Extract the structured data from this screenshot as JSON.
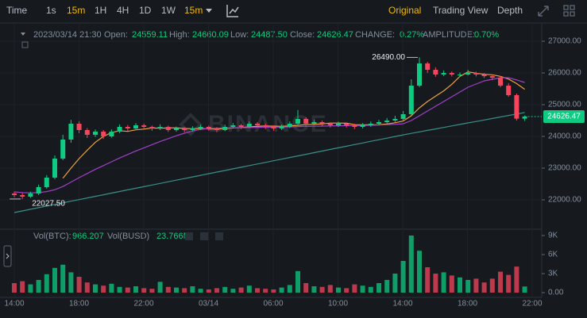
{
  "toolbar": {
    "intervals": [
      "Time",
      "1s",
      "15m",
      "1H",
      "4H",
      "1D",
      "1W"
    ],
    "selected_interval": "15m",
    "views": [
      "Original",
      "Trading View",
      "Depth"
    ]
  },
  "ohlc_legend": {
    "time": "2023/03/14 21:30",
    "open_label": "Open:",
    "open": "24559.11",
    "high_label": "High:",
    "high": "24660.09",
    "low_label": "Low:",
    "low": "24487.50",
    "close_label": "Close:",
    "close": "24626.47",
    "change_label": "CHANGE:",
    "change": "0.27%",
    "amplitude_label": "AMPLITUDE:",
    "amplitude": "0.70%"
  },
  "volume_legend": {
    "btc_label": "Vol(BTC):",
    "busd_label": "Vol(BUSD)",
    "busd": "23.766M"
  },
  "chart_data": {
    "type": "candlestick",
    "watermark": "BINANCE",
    "up_color": "#0ecb81",
    "down_color": "#f6465d",
    "grid": true,
    "ylim": [
      21125,
      27300
    ],
    "yticks": [
      {
        "value": 22000,
        "label": "22000.00"
      },
      {
        "value": 23000,
        "label": "23000.00"
      },
      {
        "value": 24000,
        "label": "24000.00"
      },
      {
        "value": 25000,
        "label": "25000.00"
      },
      {
        "value": 26000,
        "label": "26000.00"
      },
      {
        "value": 27000,
        "label": "27000.00"
      }
    ],
    "time_labels": [
      "14:00",
      "18:00",
      "22:00",
      "03/14",
      "06:00",
      "10:00",
      "14:00",
      "18:00",
      "22:00"
    ],
    "annotations": [
      {
        "value": 26490,
        "label": "26490.00"
      },
      {
        "value": 22027.5,
        "label": "22027.50"
      }
    ],
    "candles": [
      [
        22200,
        22260,
        22080,
        22150
      ],
      [
        22150,
        22220,
        22027.5,
        22100
      ],
      [
        22100,
        22260,
        22060,
        22200
      ],
      [
        22200,
        22480,
        22150,
        22400
      ],
      [
        22400,
        22780,
        22350,
        22700
      ],
      [
        22700,
        23400,
        22650,
        23300
      ],
      [
        23300,
        24050,
        23250,
        23900
      ],
      [
        23900,
        24520,
        23800,
        24400
      ],
      [
        24400,
        24480,
        24100,
        24200
      ],
      [
        24200,
        24260,
        23950,
        24050
      ],
      [
        24050,
        24220,
        23980,
        24150
      ],
      [
        24150,
        24200,
        23920,
        24000
      ],
      [
        24000,
        24220,
        23960,
        24150
      ],
      [
        24150,
        24380,
        24100,
        24300
      ],
      [
        24300,
        24360,
        24180,
        24250
      ],
      [
        24250,
        24420,
        24200,
        24350
      ],
      [
        24350,
        24400,
        24230,
        24300
      ],
      [
        24300,
        24340,
        24180,
        24250
      ],
      [
        24250,
        24380,
        24200,
        24300
      ],
      [
        24300,
        24340,
        24140,
        24200
      ],
      [
        24200,
        24310,
        24150,
        24250
      ],
      [
        24250,
        24290,
        24130,
        24200
      ],
      [
        24200,
        24320,
        24160,
        24250
      ],
      [
        24250,
        24370,
        24200,
        24300
      ],
      [
        24300,
        24340,
        24180,
        24250
      ],
      [
        24250,
        24290,
        24130,
        24200
      ],
      [
        24200,
        24370,
        24160,
        24300
      ],
      [
        24300,
        24420,
        24250,
        24350
      ],
      [
        24350,
        24400,
        24230,
        24300
      ],
      [
        24300,
        24470,
        24260,
        24400
      ],
      [
        24400,
        24450,
        24290,
        24350
      ],
      [
        24350,
        24400,
        24230,
        24300
      ],
      [
        24300,
        24350,
        24180,
        24250
      ],
      [
        24250,
        24370,
        24200,
        24300
      ],
      [
        24300,
        24470,
        24260,
        24400
      ],
      [
        24400,
        24830,
        24350,
        24550
      ],
      [
        24550,
        24600,
        24330,
        24400
      ],
      [
        24400,
        24520,
        24350,
        24450
      ],
      [
        24450,
        24500,
        24330,
        24400
      ],
      [
        24400,
        24440,
        24280,
        24350
      ],
      [
        24350,
        24470,
        24300,
        24400
      ],
      [
        24400,
        24440,
        24280,
        24350
      ],
      [
        24350,
        24400,
        24230,
        24300
      ],
      [
        24300,
        24420,
        24250,
        24350
      ],
      [
        24350,
        24470,
        24300,
        24400
      ],
      [
        24400,
        24520,
        24350,
        24450
      ],
      [
        24450,
        24580,
        24400,
        24500
      ],
      [
        24500,
        24650,
        24450,
        24550
      ],
      [
        24550,
        24800,
        24480,
        24700
      ],
      [
        24700,
        25800,
        24650,
        25600
      ],
      [
        25600,
        26490,
        25550,
        26300
      ],
      [
        26300,
        26350,
        26000,
        26100
      ],
      [
        26100,
        26180,
        25880,
        25950
      ],
      [
        25950,
        26080,
        25900,
        26000
      ],
      [
        26000,
        26050,
        25890,
        25950
      ],
      [
        25950,
        26020,
        25880,
        25950
      ],
      [
        25950,
        26100,
        25920,
        26000
      ],
      [
        26000,
        26040,
        25890,
        25950
      ],
      [
        25950,
        26000,
        25840,
        25900
      ],
      [
        25900,
        25950,
        25780,
        25850
      ],
      [
        25850,
        25900,
        25550,
        25600
      ],
      [
        25600,
        25680,
        25250,
        25300
      ],
      [
        25300,
        25350,
        24500,
        24559.11
      ],
      [
        24559.11,
        24660.09,
        24487.5,
        24626.47
      ]
    ],
    "ma_lines": [
      {
        "color": "#f0a13a",
        "values": [
          null,
          null,
          null,
          null,
          null,
          null,
          22679,
          23000,
          23300,
          23564,
          23814,
          24000,
          24121,
          24179,
          24157,
          24207,
          24229,
          24264,
          24257,
          24264,
          24271,
          24250,
          24243,
          24250,
          24236,
          24236,
          24250,
          24264,
          24279,
          24300,
          24314,
          24329,
          24322,
          24321,
          24329,
          24350,
          24371,
          24379,
          24393,
          24421,
          24421,
          24414,
          24371,
          24364,
          24364,
          24371,
          24393,
          24429,
          24486,
          24650,
          24900,
          25100,
          25271,
          25436,
          25643,
          25893,
          26036,
          25993,
          25957,
          25943,
          25893,
          25807,
          25665,
          25484
        ]
      },
      {
        "color": "#a23fc9",
        "values": [
          22250,
          22230,
          22220,
          22230,
          22260,
          22320,
          22420,
          22560,
          22700,
          22830,
          22960,
          23080,
          23200,
          23320,
          23430,
          23540,
          23640,
          23740,
          23840,
          23930,
          24020,
          24100,
          24170,
          24220,
          24250,
          24260,
          24265,
          24270,
          24275,
          24280,
          24285,
          24290,
          24290,
          24295,
          24300,
          24310,
          24315,
          24320,
          24325,
          24330,
          24335,
          24340,
          24340,
          24345,
          24350,
          24360,
          24370,
          24380,
          24400,
          24500,
          24650,
          24800,
          24950,
          25100,
          25250,
          25400,
          25550,
          25650,
          25750,
          25800,
          25850,
          25850,
          25780,
          25700
        ]
      },
      {
        "color": "#3a8f8a",
        "values": [
          21600,
          21651,
          21702,
          21753,
          21804,
          21855,
          21906,
          21957,
          22008,
          22059,
          22110,
          22161,
          22212,
          22263,
          22314,
          22365,
          22416,
          22467,
          22518,
          22569,
          22620,
          22671,
          22722,
          22773,
          22824,
          22875,
          22926,
          22977,
          23028,
          23079,
          23130,
          23181,
          23232,
          23283,
          23334,
          23385,
          23436,
          23487,
          23538,
          23589,
          23640,
          23691,
          23742,
          23793,
          23844,
          23895,
          23946,
          23997,
          24048,
          24095,
          24142,
          24189,
          24236,
          24283,
          24330,
          24377,
          24424,
          24471,
          24518,
          24565,
          24612,
          24659,
          24706,
          24753
        ]
      }
    ],
    "volume": {
      "ylim": [
        0,
        9875
      ],
      "yticks": [
        {
          "value": 0,
          "label": "0.00"
        },
        {
          "value": 3000,
          "label": "3K"
        },
        {
          "value": 6000,
          "label": "6K"
        },
        {
          "value": 9000,
          "label": "9K"
        }
      ],
      "values": [
        1500,
        1800,
        1300,
        2000,
        2900,
        3900,
        4400,
        3200,
        2500,
        1600,
        1300,
        1100,
        1400,
        900,
        800,
        1000,
        700,
        600,
        1700,
        900,
        800,
        700,
        1000,
        600,
        500,
        700,
        900,
        600,
        800,
        1100,
        700,
        600,
        500,
        800,
        1200,
        3400,
        1500,
        1000,
        900,
        1200,
        800,
        700,
        1300,
        1100,
        900,
        1500,
        2000,
        3000,
        5000,
        9000,
        6600,
        4000,
        3000,
        3200,
        2700,
        2400,
        2000,
        2200,
        1600,
        2200,
        3300,
        2800,
        4100,
        966.207
      ]
    }
  }
}
